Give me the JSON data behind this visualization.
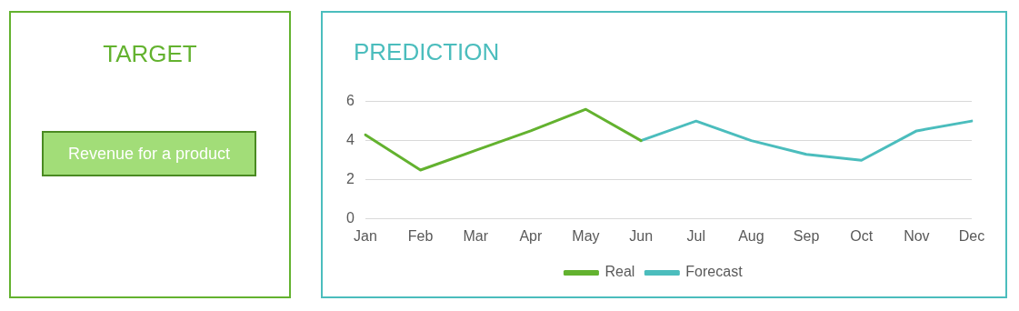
{
  "chart_data": [
    {
      "type": "other",
      "title": "TARGET",
      "annotations": [
        "Revenue for a product"
      ]
    },
    {
      "type": "line",
      "title": "PREDICTION",
      "categories": [
        "Jan",
        "Feb",
        "Mar",
        "Apr",
        "May",
        "Jun",
        "Jul",
        "Aug",
        "Sep",
        "Oct",
        "Nov",
        "Dec"
      ],
      "series": [
        {
          "name": "Real",
          "color": "#63b22f",
          "values": [
            4.3,
            2.5,
            3.5,
            4.5,
            5.6,
            4.0,
            null,
            null,
            null,
            null,
            null,
            null
          ]
        },
        {
          "name": "Forecast",
          "color": "#4bbdbd",
          "values": [
            null,
            null,
            null,
            null,
            null,
            4.0,
            5.0,
            4.0,
            3.3,
            3.0,
            4.5,
            5.0
          ]
        }
      ],
      "ylim": [
        0,
        6
      ],
      "yticks": [
        0,
        2,
        4,
        6
      ],
      "grid": "y",
      "legend": "bottom",
      "marker": "none",
      "line_style": "solid"
    }
  ]
}
